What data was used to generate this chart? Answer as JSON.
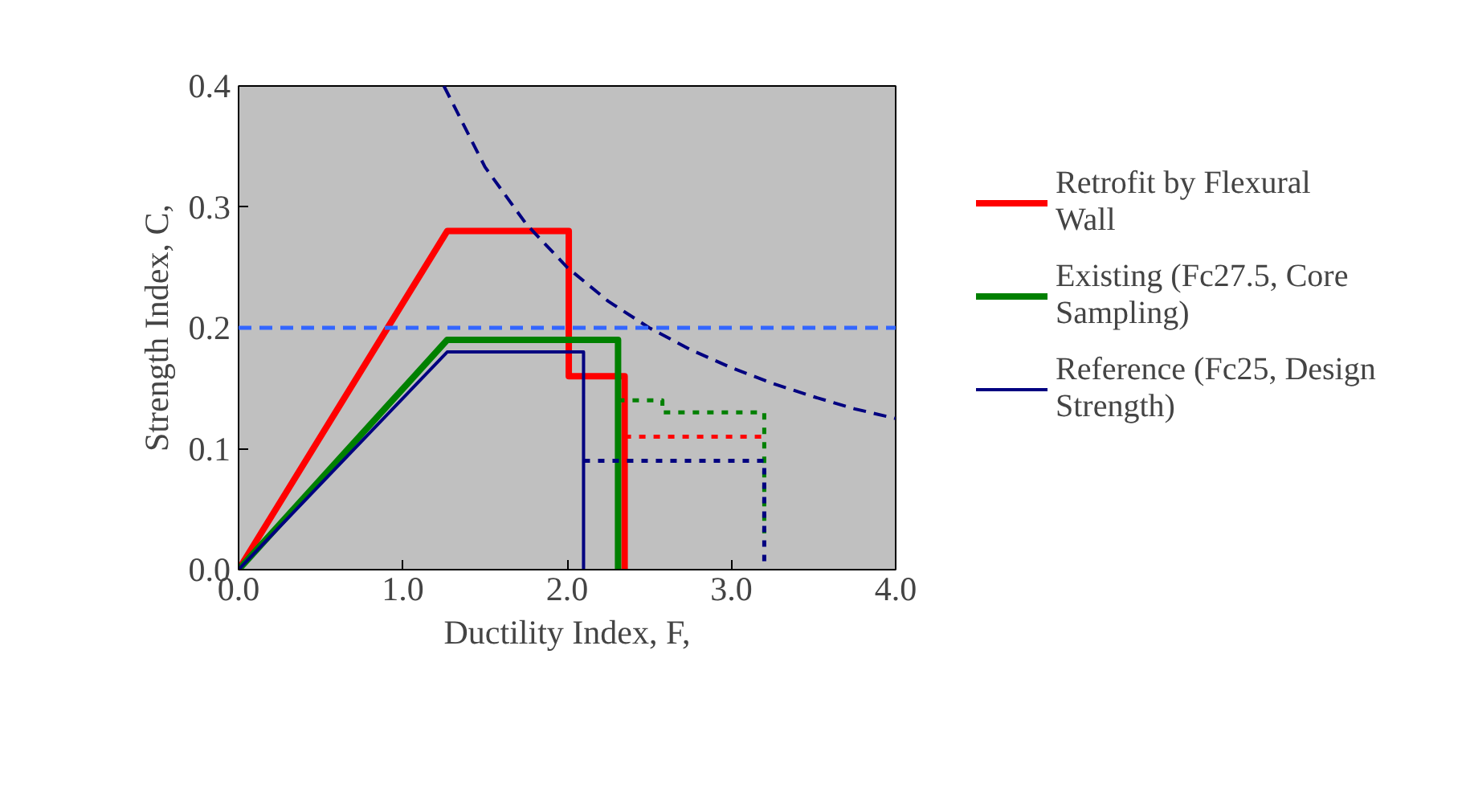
{
  "chart_data": {
    "type": "line",
    "xlabel": "Ductility Index, F,",
    "ylabel": "Strength Index, C,",
    "xlim": [
      0,
      4
    ],
    "ylim": [
      0,
      0.4
    ],
    "xticks": [
      {
        "value": 0,
        "label": "0.0"
      },
      {
        "value": 1,
        "label": "1.0"
      },
      {
        "value": 2,
        "label": "2.0"
      },
      {
        "value": 3,
        "label": "3.0"
      },
      {
        "value": 4,
        "label": "4.0"
      }
    ],
    "yticks": [
      {
        "value": 0,
        "label": "0.0"
      },
      {
        "value": 0.1,
        "label": "0.1"
      },
      {
        "value": 0.2,
        "label": "0.2"
      },
      {
        "value": 0.3,
        "label": "0.3"
      },
      {
        "value": 0.4,
        "label": "0.4"
      }
    ],
    "grid": false,
    "legend": "right",
    "marker": "none",
    "series": [
      {
        "name": "Retrofit by Flexural Wall",
        "color": "#ff0000",
        "x": [
          0,
          1.27,
          2.01,
          2.01,
          2.35,
          2.35
        ],
        "values": [
          0,
          0.28,
          0.28,
          0.16,
          0.16,
          0
        ],
        "line_style": "solid"
      },
      {
        "name": "Existing (Fc27.5, Core Sampling)",
        "color": "#008000",
        "x": [
          0,
          1.27,
          2.31,
          2.31
        ],
        "values": [
          0,
          0.19,
          0.19,
          0
        ],
        "line_style": "solid"
      },
      {
        "name": "Reference (Fc25, Design Strength)",
        "color": "#000080",
        "x": [
          0,
          1.27,
          2.1,
          2.1
        ],
        "values": [
          0,
          0.18,
          0.18,
          0
        ],
        "line_style": "solid"
      },
      {
        "color": "#ff0000",
        "x": [
          2.35,
          3.2
        ],
        "values": [
          0.11,
          0.11
        ],
        "line_style": "dotted"
      },
      {
        "color": "#008000",
        "x": [
          2.31,
          2.58,
          2.58,
          3.2,
          3.2
        ],
        "values": [
          0.14,
          0.14,
          0.13,
          0.13,
          0.03
        ],
        "line_style": "dotted"
      },
      {
        "color": "#000080",
        "x": [
          2.1,
          3.2,
          3.2
        ],
        "values": [
          0.09,
          0.09,
          0
        ],
        "line_style": "dotted"
      },
      {
        "color": "#000080",
        "x": [
          1.25,
          1.5,
          1.75,
          2.0,
          2.25,
          2.5,
          2.75,
          3.0,
          3.25,
          3.5,
          3.75,
          4.0
        ],
        "values": [
          0.4,
          0.333,
          0.286,
          0.25,
          0.222,
          0.2,
          0.182,
          0.167,
          0.154,
          0.143,
          0.133,
          0.125
        ],
        "line_style": "dashed"
      }
    ],
    "ref_lines": [
      {
        "axis": "y",
        "value": 0.2,
        "color": "#3366ff",
        "line_style": "dashed"
      }
    ]
  }
}
